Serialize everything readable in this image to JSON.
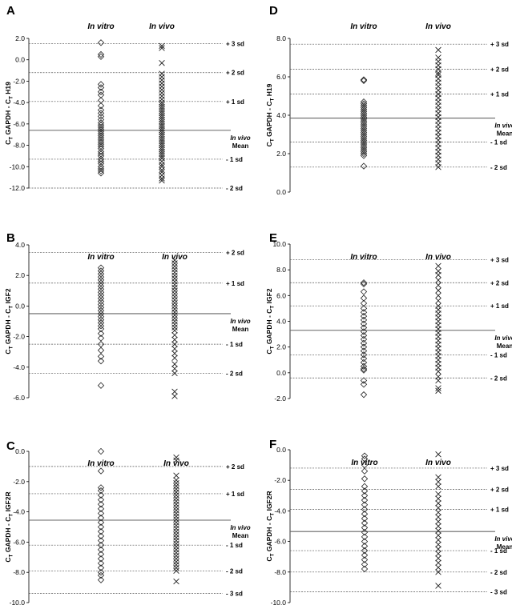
{
  "chart_data": [
    {
      "panel": "A",
      "type": "scatter",
      "ylabel": {
        "pre": "C",
        "sub1": "T",
        "mid": " GAPDH - C",
        "sub2": "T",
        "post": " H19"
      },
      "yticks": [
        "2.0",
        "0.0",
        "-2.0",
        "-4.0",
        "-6.0",
        "-8.0",
        "-10.0",
        "-12.0"
      ],
      "ylim": [
        -12,
        2
      ],
      "groups": [
        "In vitro",
        "In vivo"
      ],
      "mean": -6.6,
      "sd_lines": [
        {
          "y": 1.5,
          "label": "+ 3 sd"
        },
        {
          "y": -1.2,
          "label": "+ 2 sd"
        },
        {
          "y": -3.9,
          "label": "+ 1 sd"
        },
        {
          "y": -9.3,
          "label": "- 1 sd"
        },
        {
          "y": -12.0,
          "label": "- 2 sd"
        }
      ],
      "in_vitro": [
        1.6,
        0.5,
        0.3,
        -2.3,
        -2.6,
        -3.0,
        -3.3,
        -3.8,
        -4.3,
        -4.7,
        -5.0,
        -5.3,
        -5.6,
        -5.9,
        -6.1,
        -6.3,
        -6.5,
        -6.7,
        -6.9,
        -7.1,
        -7.3,
        -7.5,
        -7.7,
        -7.9,
        -8.1,
        -8.3,
        -8.6,
        -8.8,
        -9.0,
        -9.3,
        -9.5,
        -9.7,
        -10.0,
        -10.2,
        -10.4,
        -10.6
      ],
      "in_vivo": [
        1.3,
        1.1,
        -0.3,
        -1.3,
        -1.6,
        -1.9,
        -2.2,
        -2.5,
        -2.8,
        -3.1,
        -3.4,
        -3.7,
        -4.0,
        -4.2,
        -4.4,
        -4.6,
        -4.8,
        -5.0,
        -5.2,
        -5.4,
        -5.6,
        -5.8,
        -6.0,
        -6.2,
        -6.4,
        -6.6,
        -6.8,
        -7.0,
        -7.2,
        -7.4,
        -7.6,
        -7.8,
        -8.0,
        -8.2,
        -8.4,
        -8.6,
        -8.8,
        -9.0,
        -9.2,
        -9.5,
        -9.8,
        -10.0,
        -10.3,
        -10.5,
        -10.8,
        -11.1,
        -11.3
      ]
    },
    {
      "panel": "D",
      "type": "scatter",
      "ylabel": {
        "pre": "C",
        "sub1": "T",
        "mid": " GAPDH - C",
        "sub2": "T",
        "post": " H19"
      },
      "yticks": [
        "8.0",
        "6.0",
        "4.0",
        "2.0",
        "0.0"
      ],
      "ylim": [
        0,
        8
      ],
      "groups": [
        "In vitro",
        "In vivo"
      ],
      "mean": 3.85,
      "sd_lines": [
        {
          "y": 7.7,
          "label": "+ 3 sd"
        },
        {
          "y": 6.4,
          "label": "+ 2 sd"
        },
        {
          "y": 5.1,
          "label": "+ 1 sd"
        },
        {
          "y": 2.6,
          "label": "- 1 sd"
        },
        {
          "y": 1.3,
          "label": "- 2 sd"
        }
      ],
      "in_vitro": [
        5.85,
        5.8,
        4.7,
        4.6,
        4.5,
        4.4,
        4.3,
        4.2,
        4.1,
        4.0,
        3.9,
        3.8,
        3.7,
        3.6,
        3.5,
        3.4,
        3.3,
        3.2,
        3.1,
        3.0,
        2.9,
        2.8,
        2.7,
        2.6,
        2.5,
        2.4,
        2.3,
        2.2,
        2.1,
        2.0,
        1.9,
        1.35
      ],
      "in_vivo": [
        7.4,
        7.0,
        6.8,
        6.6,
        6.4,
        6.2,
        6.1,
        5.9,
        5.7,
        5.5,
        5.3,
        5.1,
        4.9,
        4.7,
        4.5,
        4.3,
        4.1,
        3.9,
        3.7,
        3.5,
        3.3,
        3.1,
        2.9,
        2.7,
        2.5,
        2.3,
        2.1,
        1.9,
        1.7,
        1.5,
        1.3
      ]
    },
    {
      "panel": "B",
      "type": "scatter",
      "ylabel": {
        "pre": "C",
        "sub1": "T",
        "mid": " GAPDH - C",
        "sub2": "T",
        "post": " IGF2"
      },
      "yticks": [
        "4.0",
        "2.0",
        "0.0",
        "-2.0",
        "-4.0",
        "-6.0"
      ],
      "ylim": [
        -6,
        4
      ],
      "groups": [
        "In vitro",
        "In vivo"
      ],
      "mean": -0.5,
      "sd_lines": [
        {
          "y": 3.5,
          "label": "+ 2 sd"
        },
        {
          "y": 1.5,
          "label": "+ 1 sd"
        },
        {
          "y": -2.5,
          "label": "- 1 sd"
        },
        {
          "y": -4.4,
          "label": "- 2 sd"
        }
      ],
      "in_vitro": [
        2.5,
        2.3,
        2.1,
        1.9,
        1.7,
        1.5,
        1.3,
        1.1,
        0.9,
        0.7,
        0.5,
        0.3,
        0.1,
        -0.1,
        -0.3,
        -0.5,
        -0.7,
        -0.9,
        -1.1,
        -1.3,
        -1.5,
        -1.8,
        -2.1,
        -2.5,
        -2.9,
        -3.3,
        -3.6,
        -5.2
      ],
      "in_vivo": [
        3.0,
        2.8,
        2.6,
        2.4,
        2.2,
        2.0,
        1.8,
        1.6,
        1.4,
        1.2,
        1.0,
        0.8,
        0.6,
        0.4,
        0.2,
        0.0,
        -0.2,
        -0.4,
        -0.6,
        -0.8,
        -1.0,
        -1.2,
        -1.4,
        -1.6,
        -1.9,
        -2.2,
        -2.5,
        -2.8,
        -3.1,
        -3.4,
        -3.8,
        -4.1,
        -4.4,
        -5.6,
        -5.9
      ]
    },
    {
      "panel": "E",
      "type": "scatter",
      "ylabel": {
        "pre": "C",
        "sub1": "T",
        "mid": " GAPDH - C",
        "sub2": "T",
        "post": " IGF2"
      },
      "yticks": [
        "10.0",
        "8.0",
        "6.0",
        "4.0",
        "2.0",
        "0.0",
        "-2.0"
      ],
      "ylim": [
        -2,
        10
      ],
      "groups": [
        "In vitro",
        "In vivo"
      ],
      "mean": 3.3,
      "sd_lines": [
        {
          "y": 8.8,
          "label": "+ 3 sd"
        },
        {
          "y": 7.0,
          "label": "+ 2 sd"
        },
        {
          "y": 5.2,
          "label": "+ 1 sd"
        },
        {
          "y": 1.4,
          "label": "- 1 sd"
        },
        {
          "y": -0.4,
          "label": "- 2 sd"
        }
      ],
      "in_vitro": [
        7.0,
        6.9,
        6.3,
        5.8,
        5.4,
        5.0,
        4.7,
        4.4,
        4.1,
        3.8,
        3.5,
        3.2,
        2.9,
        2.6,
        2.3,
        2.0,
        1.7,
        1.4,
        1.1,
        0.8,
        0.5,
        0.3,
        0.2,
        -0.6,
        -0.9,
        -1.7
      ],
      "in_vivo": [
        8.3,
        7.9,
        7.6,
        7.2,
        6.8,
        6.4,
        6.0,
        5.6,
        5.2,
        4.9,
        4.6,
        4.3,
        4.0,
        3.7,
        3.4,
        3.1,
        2.8,
        2.5,
        2.2,
        1.9,
        1.6,
        1.3,
        1.0,
        0.7,
        0.4,
        0.1,
        -0.3,
        -0.6,
        -1.2,
        -1.4
      ]
    },
    {
      "panel": "C",
      "type": "scatter",
      "ylabel": {
        "pre": "C",
        "sub1": "T",
        "mid": " GAPDH - C",
        "sub2": "T",
        "post": " IGF2R"
      },
      "yticks": [
        "0.0",
        "-2.0",
        "-4.0",
        "-6.0",
        "-8.0",
        "-10.0"
      ],
      "ylim": [
        -10,
        0
      ],
      "groups": [
        "In vitro",
        "In vivo"
      ],
      "mean": -4.55,
      "sd_lines": [
        {
          "y": -1.0,
          "label": "+ 2 sd"
        },
        {
          "y": -2.8,
          "label": "+ 1 sd"
        },
        {
          "y": -6.2,
          "label": "- 1 sd"
        },
        {
          "y": -7.9,
          "label": "- 2 sd"
        },
        {
          "y": -9.4,
          "label": "- 3 sd"
        }
      ],
      "in_vitro": [
        0.0,
        -1.3,
        -2.4,
        -2.6,
        -2.9,
        -3.2,
        -3.5,
        -3.8,
        -4.1,
        -4.4,
        -4.7,
        -5.0,
        -5.3,
        -5.6,
        -5.9,
        -6.2,
        -6.5,
        -6.8,
        -7.1,
        -7.4,
        -7.7,
        -8.0,
        -8.2,
        -8.5
      ],
      "in_vivo": [
        -0.4,
        -0.6,
        -1.6,
        -1.9,
        -2.1,
        -2.3,
        -2.5,
        -2.7,
        -2.9,
        -3.1,
        -3.3,
        -3.5,
        -3.7,
        -3.9,
        -4.1,
        -4.3,
        -4.5,
        -4.7,
        -4.9,
        -5.1,
        -5.3,
        -5.5,
        -5.7,
        -5.9,
        -6.1,
        -6.3,
        -6.5,
        -6.7,
        -6.9,
        -7.1,
        -7.3,
        -7.5,
        -7.7,
        -7.9,
        -8.6
      ]
    },
    {
      "panel": "F",
      "type": "scatter",
      "ylabel": {
        "pre": "C",
        "sub1": "T",
        "mid": " GAPDH - C",
        "sub2": "T",
        "post": " IGF2R"
      },
      "yticks": [
        "0.0",
        "-2.0",
        "-4.0",
        "-6.0",
        "-8.0",
        "-10.0"
      ],
      "ylim": [
        -10,
        0
      ],
      "groups": [
        "In vitro",
        "In vivo"
      ],
      "mean": -5.35,
      "sd_lines": [
        {
          "y": -1.2,
          "label": "+ 3 sd"
        },
        {
          "y": -2.6,
          "label": "+ 2 sd"
        },
        {
          "y": -3.9,
          "label": "+ 1 sd"
        },
        {
          "y": -6.6,
          "label": "- 1 sd"
        },
        {
          "y": -8.0,
          "label": "- 2 sd"
        },
        {
          "y": -9.3,
          "label": "- 3 sd"
        }
      ],
      "in_vitro": [
        -0.4,
        -0.6,
        -1.0,
        -1.4,
        -1.9,
        -2.4,
        -2.7,
        -3.0,
        -3.3,
        -3.6,
        -3.9,
        -4.2,
        -4.5,
        -4.8,
        -5.1,
        -5.4,
        -5.7,
        -6.0,
        -6.3,
        -6.6,
        -6.9,
        -7.2,
        -7.5,
        -7.8
      ],
      "in_vivo": [
        -0.3,
        -1.8,
        -2.1,
        -2.4,
        -2.9,
        -3.2,
        -3.5,
        -3.8,
        -4.1,
        -4.4,
        -4.7,
        -5.0,
        -5.3,
        -5.6,
        -5.9,
        -6.2,
        -6.5,
        -6.8,
        -7.1,
        -7.4,
        -7.7,
        -8.0,
        -8.9
      ]
    }
  ],
  "mean_label": {
    "line1": "In vivo",
    "line2": "Mean"
  }
}
